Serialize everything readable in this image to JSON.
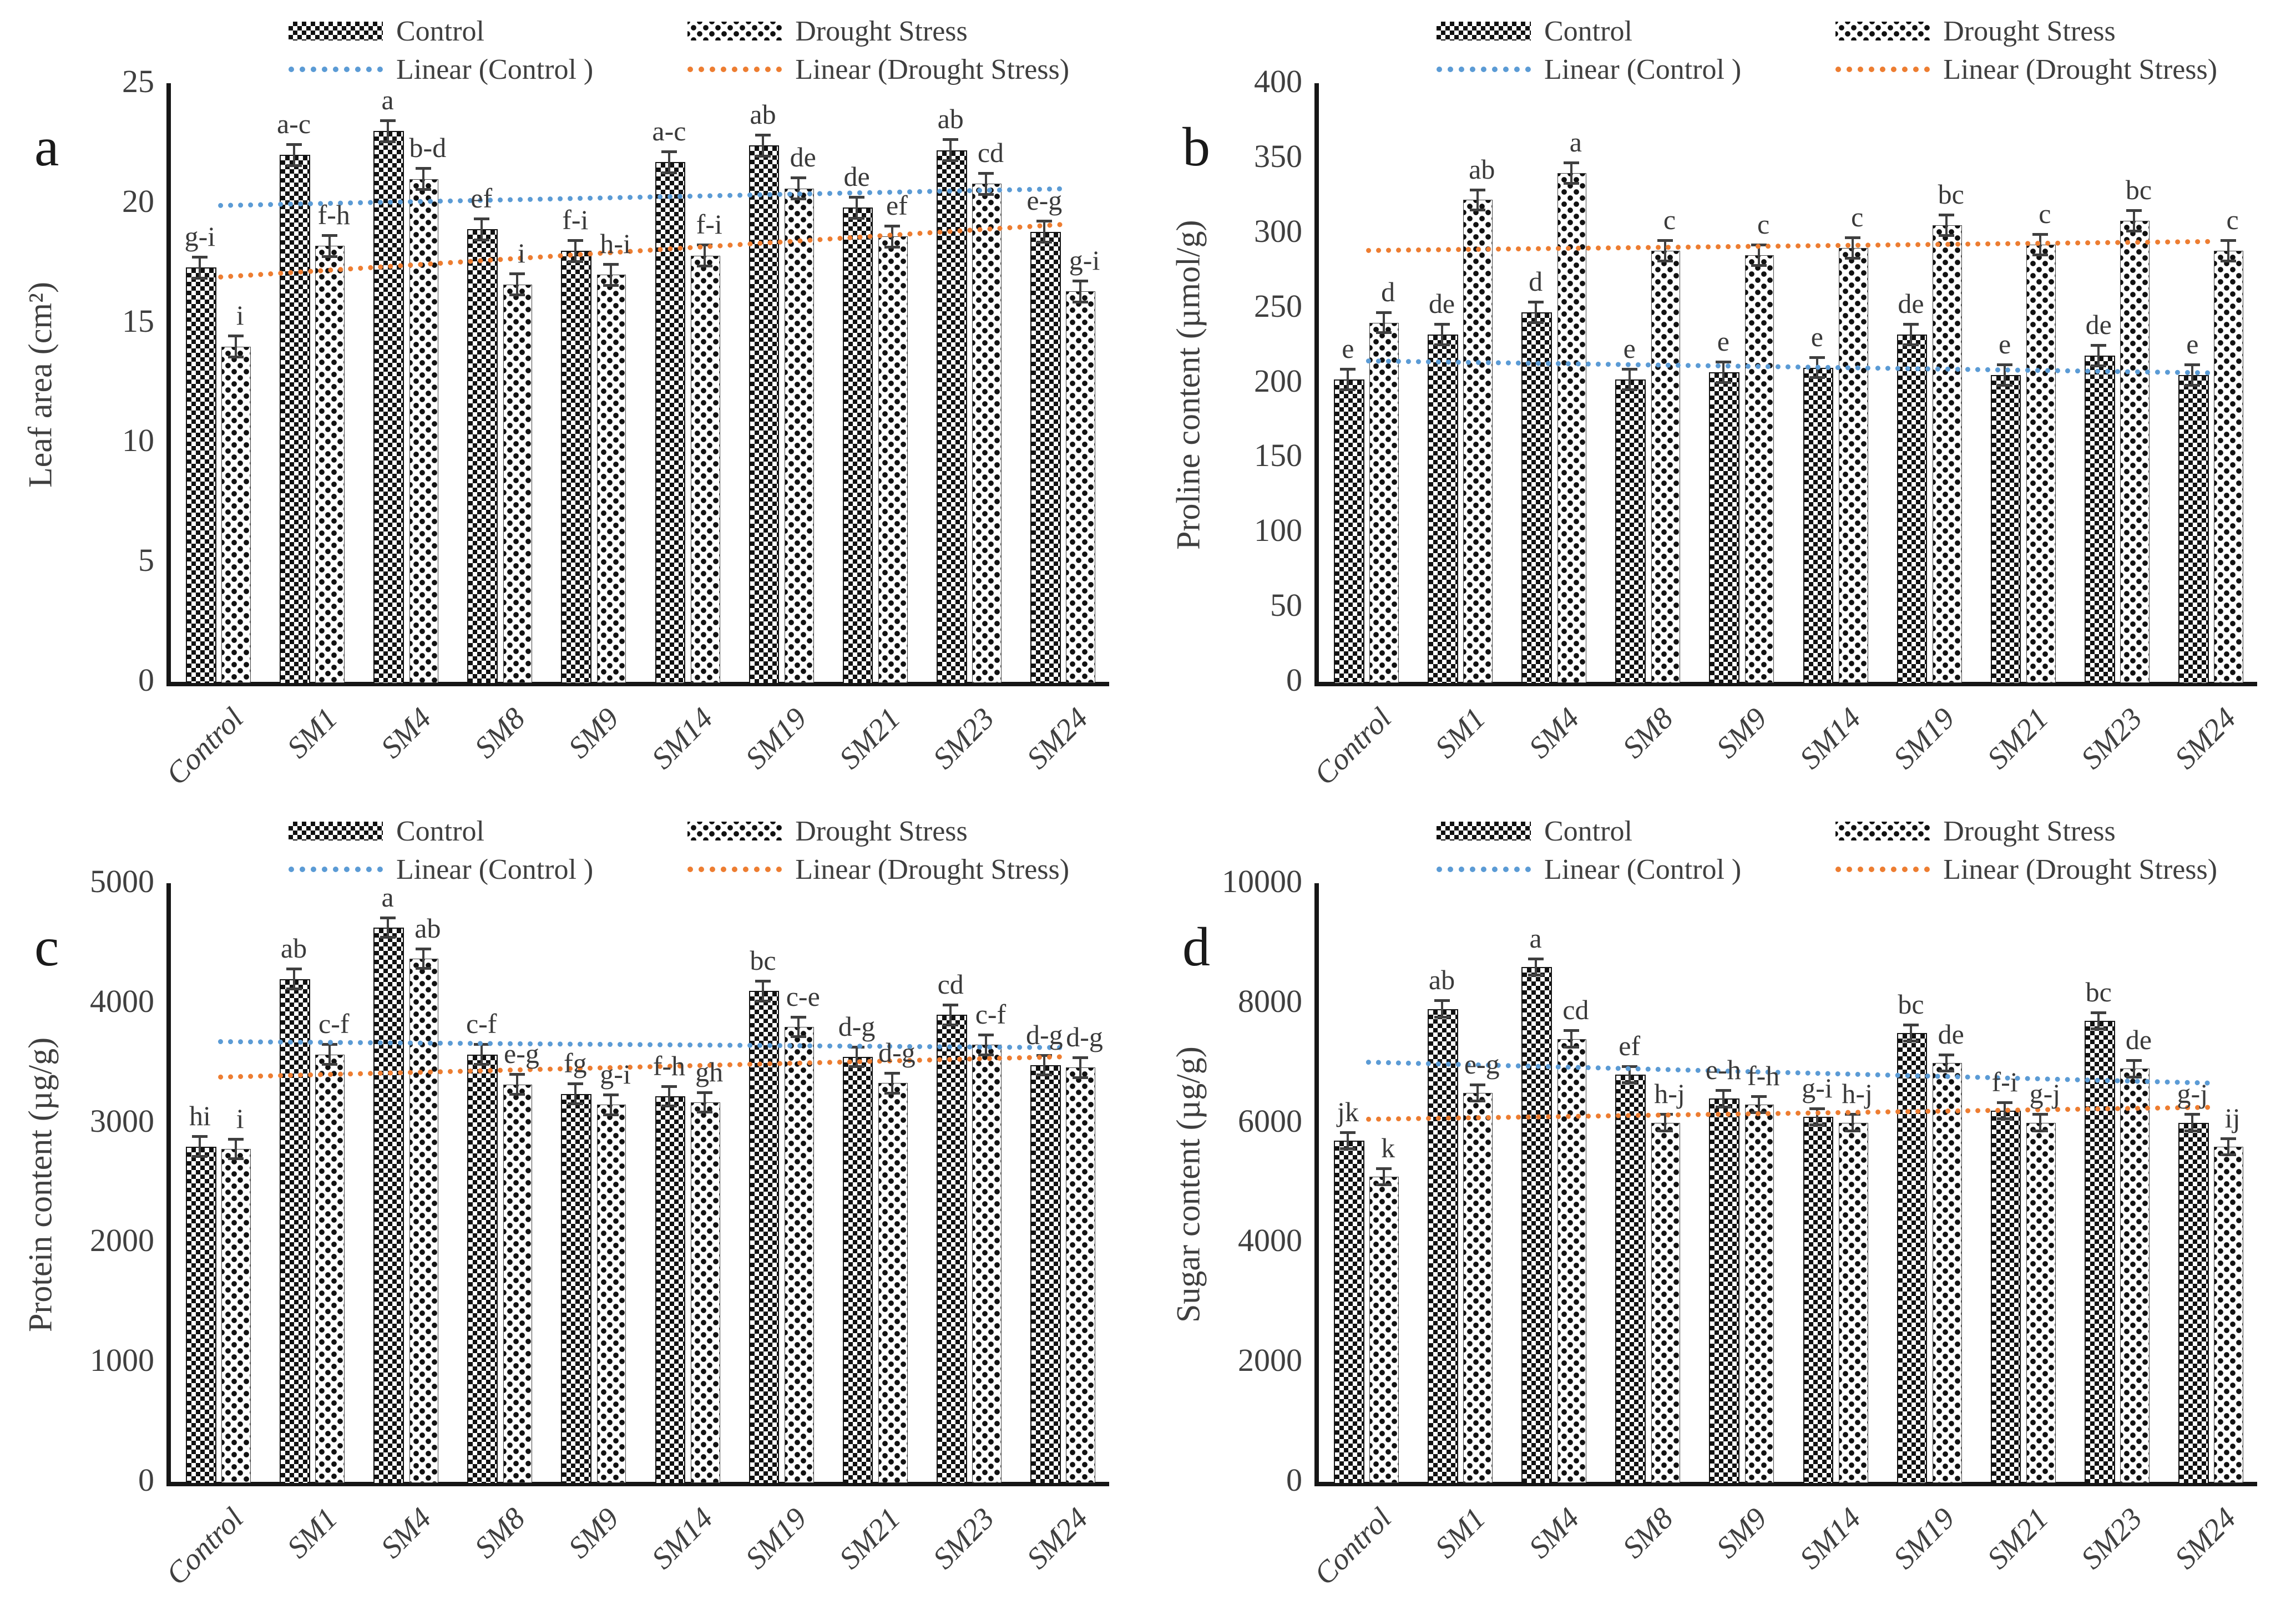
{
  "legend": {
    "control": "Control",
    "drought": "Drought Stress",
    "linear_control": "Linear (Control )",
    "linear_drought": "Linear (Drought Stress)"
  },
  "colors": {
    "linear_control": "#5B9BD5",
    "linear_drought": "#ED7D31",
    "bar_ink": "#111111",
    "text": "#3f3f3f"
  },
  "chart_data": [
    {
      "panel": "a",
      "type": "bar",
      "ylabel": "Leaf area (cm²)",
      "ylim": [
        0,
        25
      ],
      "ytick_step": 5,
      "err": 0.45,
      "grid": false,
      "legend_position": "top",
      "categories": [
        "Control",
        "SM1",
        "SM4",
        "SM8",
        "SM9",
        "SM14",
        "SM19",
        "SM21",
        "SM23",
        "SM24"
      ],
      "series": [
        {
          "name": "Control",
          "values": [
            17.3,
            22.0,
            23.0,
            18.9,
            18.0,
            21.7,
            22.4,
            19.8,
            22.2,
            18.8
          ],
          "letters": [
            "g-i",
            "a-c",
            "a",
            "ef",
            "f-i",
            "a-c",
            "ab",
            "de",
            "ab",
            "e-g"
          ]
        },
        {
          "name": "Drought Stress",
          "values": [
            14.0,
            18.2,
            21.0,
            16.6,
            17.0,
            17.8,
            20.6,
            18.6,
            20.8,
            16.3
          ],
          "letters": [
            "i",
            "f-h",
            "b-d",
            "i",
            "h-i",
            "f-i",
            "de",
            "ef",
            "cd",
            "g-i"
          ]
        }
      ],
      "trendlines": [
        {
          "name": "Linear (Control )",
          "start": 20.0,
          "end": 20.7,
          "color": "#5B9BD5"
        },
        {
          "name": "Linear (Drought Stress)",
          "start": 17.0,
          "end": 19.2,
          "color": "#ED7D31"
        }
      ]
    },
    {
      "panel": "b",
      "type": "bar",
      "ylabel": "Proline content (µmol/g)",
      "ylim": [
        0,
        400
      ],
      "ytick_step": 50,
      "err": 7,
      "grid": false,
      "legend_position": "top",
      "categories": [
        "Control",
        "SM1",
        "SM4",
        "SM8",
        "SM9",
        "SM14",
        "SM19",
        "SM21",
        "SM23",
        "SM24"
      ],
      "series": [
        {
          "name": "Control",
          "values": [
            202,
            232,
            247,
            202,
            207,
            210,
            232,
            205,
            218,
            205
          ],
          "letters": [
            "e",
            "de",
            "d",
            "e",
            "e",
            "e",
            "de",
            "e",
            "de",
            "e"
          ]
        },
        {
          "name": "Drought Stress",
          "values": [
            240,
            322,
            340,
            288,
            285,
            290,
            305,
            292,
            308,
            288
          ],
          "letters": [
            "d",
            "ab",
            "a",
            "c",
            "c",
            "c",
            "bc",
            "c",
            "bc",
            "c"
          ]
        }
      ],
      "trendlines": [
        {
          "name": "Linear (Control )",
          "start": 216,
          "end": 208,
          "color": "#5B9BD5"
        },
        {
          "name": "Linear (Drought Stress)",
          "start": 290,
          "end": 296,
          "color": "#ED7D31"
        }
      ]
    },
    {
      "panel": "c",
      "type": "bar",
      "ylabel": "Protein content (µg/g)",
      "ylim": [
        0,
        5000
      ],
      "ytick_step": 1000,
      "err": 85,
      "grid": false,
      "legend_position": "top",
      "categories": [
        "Control",
        "SM1",
        "SM4",
        "SM8",
        "SM9",
        "SM14",
        "SM19",
        "SM21",
        "SM23",
        "SM24"
      ],
      "series": [
        {
          "name": "Control",
          "values": [
            2800,
            4200,
            4630,
            3570,
            3240,
            3220,
            4100,
            3550,
            3900,
            3480
          ],
          "letters": [
            "hi",
            "ab",
            "a",
            "c-f",
            "fg",
            "f-h",
            "bc",
            "d-g",
            "cd",
            "d-g"
          ]
        },
        {
          "name": "Drought Stress",
          "values": [
            2780,
            3570,
            4370,
            3320,
            3150,
            3170,
            3800,
            3330,
            3650,
            3460
          ],
          "letters": [
            "i",
            "c-f",
            "ab",
            "e-g",
            "g-i",
            "gh",
            "c-e",
            "d-g",
            "c-f",
            "d-g"
          ]
        }
      ],
      "trendlines": [
        {
          "name": "Linear (Control )",
          "start": 3700,
          "end": 3650,
          "color": "#5B9BD5"
        },
        {
          "name": "Linear (Drought Stress)",
          "start": 3400,
          "end": 3570,
          "color": "#ED7D31"
        }
      ]
    },
    {
      "panel": "d",
      "type": "bar",
      "ylabel": "Sugar content (µg/g)",
      "ylim": [
        0,
        10000
      ],
      "ytick_step": 2000,
      "err": 140,
      "grid": false,
      "legend_position": "top",
      "categories": [
        "Control",
        "SM1",
        "SM4",
        "SM8",
        "SM9",
        "SM14",
        "SM19",
        "SM21",
        "SM23",
        "SM24"
      ],
      "series": [
        {
          "name": "Control",
          "values": [
            5700,
            7900,
            8600,
            6800,
            6400,
            6100,
            7500,
            6200,
            7700,
            6000
          ],
          "letters": [
            "jk",
            "ab",
            "a",
            "ef",
            "e-h",
            "g-i",
            "bc",
            "f-i",
            "bc",
            "g-j"
          ]
        },
        {
          "name": "Drought Stress",
          "values": [
            5100,
            6500,
            7400,
            6000,
            6300,
            6000,
            7000,
            6000,
            6900,
            5600
          ],
          "letters": [
            "k",
            "e-g",
            "cd",
            "h-j",
            "f-h",
            "h-j",
            "de",
            "g-j",
            "de",
            "ij"
          ]
        }
      ],
      "trendlines": [
        {
          "name": "Linear (Control )",
          "start": 7050,
          "end": 6700,
          "color": "#5B9BD5"
        },
        {
          "name": "Linear (Drought Stress)",
          "start": 6100,
          "end": 6300,
          "color": "#ED7D31"
        }
      ]
    }
  ]
}
